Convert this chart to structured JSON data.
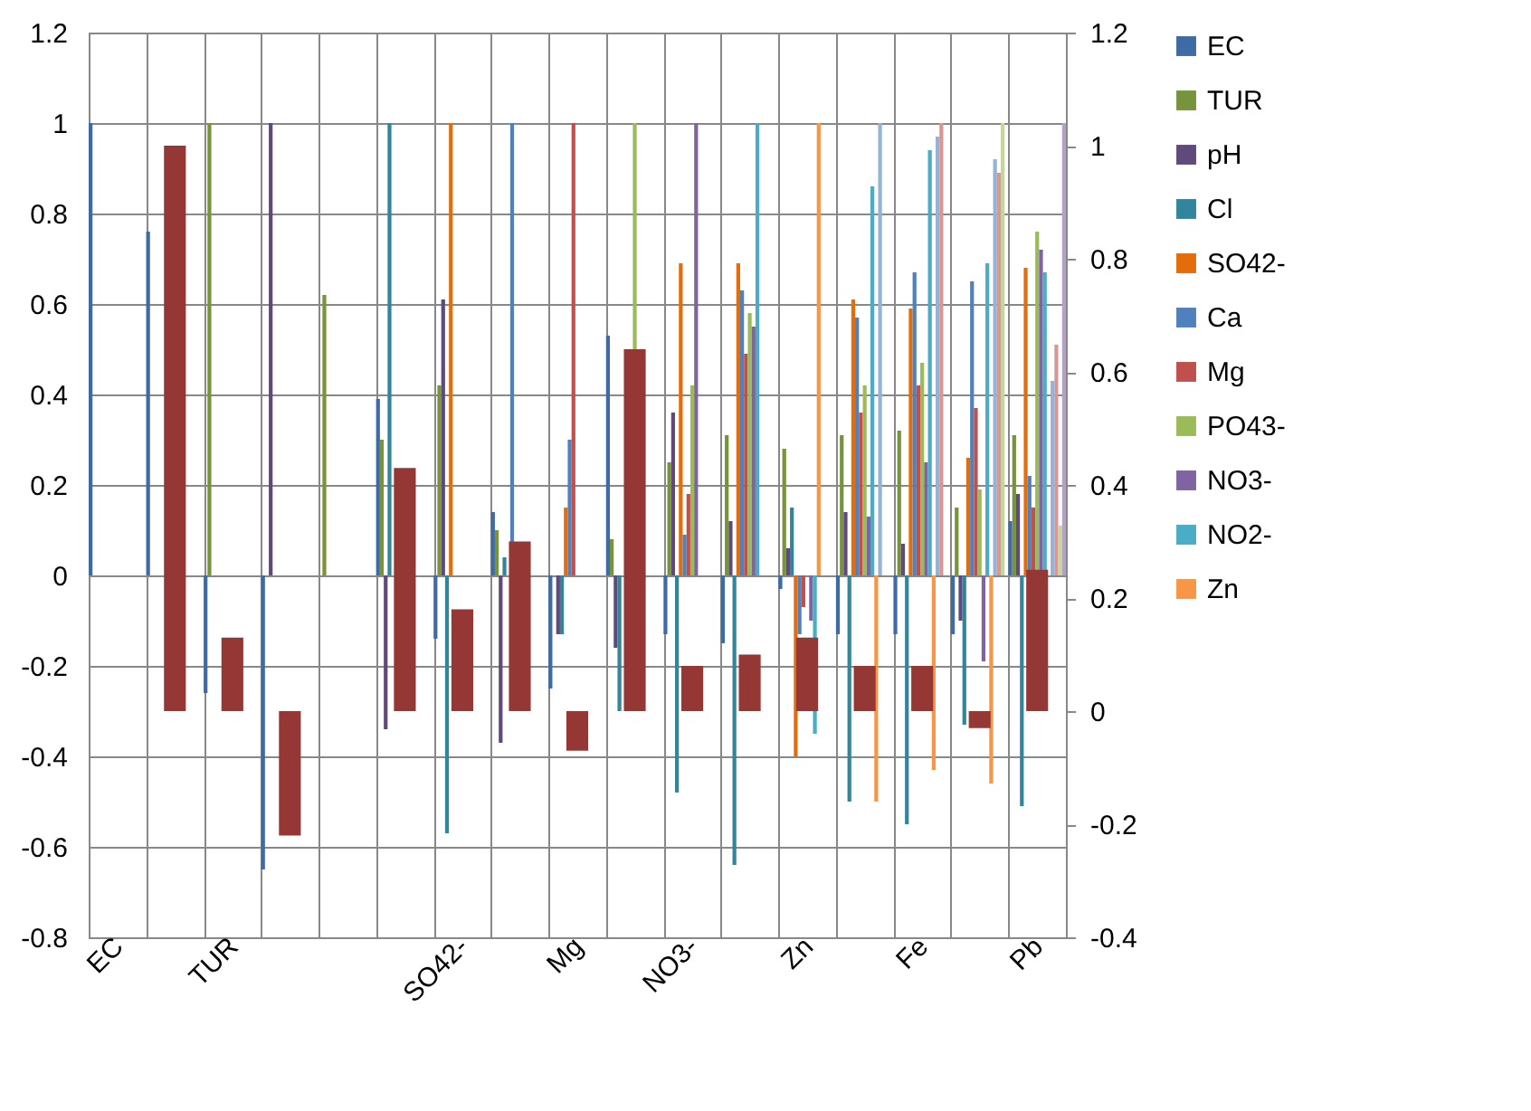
{
  "chart_data": {
    "type": "bar",
    "categories": [
      "EC",
      null,
      "TUR",
      null,
      null,
      null,
      "SO42-",
      null,
      "Mg",
      null,
      "NO3-",
      null,
      "Zn",
      null,
      "Fe",
      null,
      "Pb"
    ],
    "series": [
      {
        "name": "EC",
        "color": "#3e6ba3",
        "values": [
          1.0,
          0.76,
          -0.26,
          -0.65,
          null,
          0.39,
          -0.14,
          0.14,
          -0.25,
          0.53,
          -0.13,
          -0.15,
          -0.03,
          -0.13,
          -0.13,
          -0.13,
          0.12
        ]
      },
      {
        "name": "TUR",
        "color": "#77933c",
        "values": [
          null,
          null,
          1.0,
          null,
          0.62,
          0.3,
          0.42,
          0.1,
          null,
          0.08,
          0.25,
          0.31,
          0.28,
          0.31,
          0.32,
          0.15,
          0.31
        ]
      },
      {
        "name": "pH",
        "color": "#604a7b",
        "values": [
          null,
          null,
          null,
          1.0,
          null,
          -0.34,
          0.61,
          -0.37,
          -0.13,
          -0.16,
          0.36,
          0.12,
          0.06,
          0.14,
          0.07,
          -0.1,
          0.18
        ]
      },
      {
        "name": "Cl",
        "color": "#31859c",
        "values": [
          null,
          null,
          null,
          null,
          null,
          1.0,
          -0.57,
          0.04,
          -0.13,
          -0.3,
          -0.48,
          -0.64,
          0.15,
          -0.5,
          -0.55,
          -0.33,
          -0.51
        ]
      },
      {
        "name": "SO42-",
        "color": "#e46c0a",
        "values": [
          null,
          null,
          null,
          null,
          null,
          null,
          1.0,
          null,
          0.15,
          null,
          0.69,
          0.69,
          -0.4,
          0.61,
          0.59,
          0.26,
          0.68
        ]
      },
      {
        "name": "Ca",
        "color": "#4f81bd",
        "values": [
          null,
          null,
          null,
          null,
          null,
          null,
          null,
          1.0,
          0.3,
          null,
          0.09,
          0.63,
          -0.13,
          0.57,
          0.67,
          0.65,
          0.22
        ]
      },
      {
        "name": "Mg",
        "color": "#c0504d",
        "values": [
          null,
          null,
          null,
          null,
          null,
          null,
          null,
          null,
          1.0,
          null,
          0.18,
          0.49,
          -0.07,
          0.36,
          0.42,
          0.37,
          0.15
        ]
      },
      {
        "name": "PO43-",
        "color": "#9bbb59",
        "values": [
          null,
          null,
          null,
          null,
          null,
          null,
          null,
          null,
          null,
          1.0,
          0.42,
          0.58,
          null,
          0.42,
          0.47,
          0.19,
          0.76
        ]
      },
      {
        "name": "NO3-",
        "color": "#8064a2",
        "values": [
          null,
          null,
          null,
          null,
          null,
          null,
          null,
          null,
          null,
          null,
          1.0,
          0.55,
          -0.1,
          0.13,
          0.25,
          -0.19,
          0.72
        ]
      },
      {
        "name": "NO2-",
        "color": "#4bacc6",
        "values": [
          null,
          null,
          null,
          null,
          null,
          null,
          null,
          null,
          null,
          null,
          null,
          1.0,
          -0.35,
          0.86,
          0.94,
          0.69,
          0.67
        ]
      },
      {
        "name": "Zn",
        "color": "#f79646",
        "values": [
          null,
          null,
          null,
          null,
          null,
          null,
          null,
          null,
          null,
          null,
          null,
          null,
          1.0,
          -0.5,
          -0.43,
          -0.46,
          null
        ]
      },
      {
        "color": "#95b3d7",
        "values": [
          null,
          null,
          null,
          null,
          null,
          null,
          null,
          null,
          null,
          null,
          null,
          null,
          null,
          1.0,
          0.97,
          0.92,
          0.43
        ]
      },
      {
        "color": "#d99694",
        "values": [
          null,
          null,
          null,
          null,
          null,
          null,
          null,
          null,
          null,
          null,
          null,
          null,
          null,
          null,
          1.0,
          0.89,
          0.51
        ]
      },
      {
        "color": "#c3d69b",
        "values": [
          null,
          null,
          null,
          null,
          null,
          null,
          null,
          null,
          null,
          null,
          null,
          null,
          null,
          null,
          null,
          1.0,
          0.11
        ]
      },
      {
        "color": "#b3a2c7",
        "values": [
          null,
          null,
          null,
          null,
          null,
          null,
          null,
          null,
          null,
          null,
          null,
          null,
          null,
          null,
          null,
          null,
          1.0
        ]
      },
      {
        "color": "#953735",
        "axis": "y2",
        "values": [
          null,
          1.0,
          0.13,
          -0.22,
          null,
          0.43,
          0.18,
          0.3,
          -0.07,
          0.64,
          0.08,
          0.1,
          0.13,
          0.08,
          0.08,
          -0.03,
          0.25
        ]
      }
    ],
    "ylim": [
      -0.8,
      1.2
    ],
    "yticks": [
      -0.8,
      -0.6,
      -0.4,
      -0.2,
      0,
      0.2,
      0.4,
      0.6,
      0.8,
      1,
      1.2
    ],
    "y2lim": [
      -0.4,
      1.2
    ],
    "y2ticks": [
      -0.4,
      -0.2,
      0,
      0.2,
      0.4,
      0.6,
      0.8,
      1,
      1.2
    ],
    "grid": true,
    "legend": "right"
  }
}
